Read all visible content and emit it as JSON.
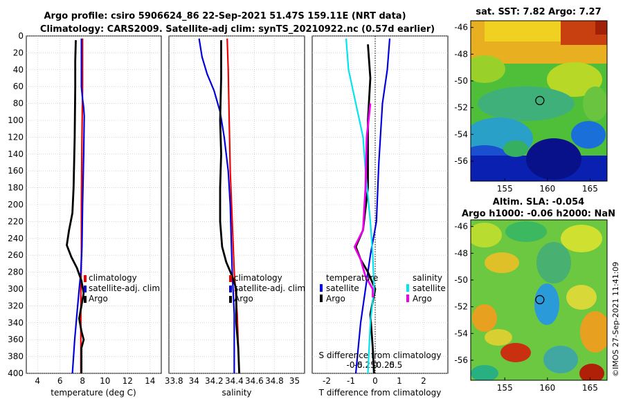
{
  "title_line1": "Argo profile: csiro 5906624_86 22-Sep-2021 51.47S 159.11E (NRT data)",
  "title_line2": "Climatology: CARS2009. Satellite-adj clim: synTS_20210922.nc (0.57d earlier)",
  "watermark": "©IMOS 27-Sep-2021 11:41:09",
  "colors": {
    "climatology": "#ee0000",
    "satellite": "#0000dd",
    "argo": "#000000",
    "sat_salinity": "#00e5ee",
    "argo_salinity": "#ee00ee"
  },
  "chart_data": [
    {
      "type": "line",
      "name": "temperature-panel",
      "xlabel": "temperature (deg C)",
      "ylabel": "",
      "xlim": [
        3,
        15
      ],
      "ylim": [
        0,
        400
      ],
      "xticks": [
        4,
        6,
        8,
        10,
        12,
        14
      ],
      "yticks": [
        0,
        20,
        40,
        60,
        80,
        100,
        120,
        140,
        160,
        180,
        200,
        220,
        240,
        260,
        280,
        300,
        320,
        340,
        360,
        380,
        400
      ],
      "legend": [
        "climatology",
        "satellite-adj. clim",
        "Argo"
      ],
      "series": [
        {
          "name": "climatology",
          "color": "#ee0000",
          "points": [
            [
              8.0,
              3
            ],
            [
              8.0,
              60
            ],
            [
              7.95,
              120
            ],
            [
              7.9,
              200
            ],
            [
              7.9,
              260
            ],
            [
              7.85,
              300
            ],
            [
              7.85,
              330
            ],
            [
              7.85,
              400
            ]
          ]
        },
        {
          "name": "satellite-adj. clim",
          "color": "#0000dd",
          "points": [
            [
              7.9,
              3
            ],
            [
              7.9,
              60
            ],
            [
              8.0,
              75
            ],
            [
              8.1,
              85
            ],
            [
              8.15,
              95
            ],
            [
              8.1,
              140
            ],
            [
              8.0,
              200
            ],
            [
              7.95,
              250
            ],
            [
              7.85,
              280
            ],
            [
              7.7,
              300
            ],
            [
              7.5,
              330
            ],
            [
              7.3,
              360
            ],
            [
              7.1,
              400
            ]
          ]
        },
        {
          "name": "Argo",
          "color": "#000000",
          "points": [
            [
              7.4,
              5
            ],
            [
              7.35,
              30
            ],
            [
              7.35,
              60
            ],
            [
              7.3,
              120
            ],
            [
              7.2,
              180
            ],
            [
              7.1,
              210
            ],
            [
              6.8,
              230
            ],
            [
              6.6,
              248
            ],
            [
              7.0,
              262
            ],
            [
              7.5,
              275
            ],
            [
              7.9,
              290
            ],
            [
              8.1,
              305
            ],
            [
              7.9,
              320
            ],
            [
              7.7,
              335
            ],
            [
              7.9,
              350
            ],
            [
              8.1,
              360
            ],
            [
              7.9,
              370
            ],
            [
              7.9,
              400
            ]
          ]
        }
      ]
    },
    {
      "type": "line",
      "name": "salinity-panel",
      "xlabel": "salinity",
      "ylabel": "",
      "xlim": [
        33.75,
        35.1
      ],
      "ylim": [
        0,
        400
      ],
      "xticks": [
        33.8,
        34,
        34.2,
        34.4,
        34.6,
        34.8,
        35
      ],
      "xtick_labels": [
        "33.8",
        "34",
        "34.2",
        "34.4",
        "34.6",
        "34.8",
        "35"
      ],
      "yticks": [
        0,
        20,
        40,
        60,
        80,
        100,
        120,
        140,
        160,
        180,
        200,
        220,
        240,
        260,
        280,
        300,
        320,
        340,
        360,
        380,
        400
      ],
      "legend": [
        "climatology",
        "satellite-adj. clim",
        "Argo"
      ],
      "series": [
        {
          "name": "climatology",
          "color": "#ee0000",
          "points": [
            [
              34.33,
              3
            ],
            [
              34.34,
              40
            ],
            [
              34.35,
              100
            ],
            [
              34.36,
              160
            ],
            [
              34.38,
              220
            ],
            [
              34.4,
              280
            ],
            [
              34.43,
              330
            ],
            [
              34.45,
              400
            ]
          ]
        },
        {
          "name": "satellite-adj. clim",
          "color": "#0000dd",
          "points": [
            [
              34.05,
              3
            ],
            [
              34.08,
              25
            ],
            [
              34.13,
              45
            ],
            [
              34.2,
              65
            ],
            [
              34.26,
              90
            ],
            [
              34.3,
              120
            ],
            [
              34.34,
              160
            ],
            [
              34.36,
              200
            ],
            [
              34.37,
              240
            ],
            [
              34.38,
              280
            ],
            [
              34.4,
              330
            ],
            [
              34.4,
              400
            ]
          ]
        },
        {
          "name": "Argo",
          "color": "#000000",
          "points": [
            [
              34.27,
              5
            ],
            [
              34.27,
              50
            ],
            [
              34.26,
              100
            ],
            [
              34.27,
              140
            ],
            [
              34.26,
              180
            ],
            [
              34.26,
              220
            ],
            [
              34.28,
              250
            ],
            [
              34.32,
              268
            ],
            [
              34.38,
              285
            ],
            [
              34.42,
              300
            ],
            [
              34.42,
              340
            ],
            [
              34.44,
              370
            ],
            [
              34.45,
              400
            ]
          ]
        }
      ]
    },
    {
      "type": "line",
      "name": "difference-panel",
      "xlabel": "T difference from climatology",
      "xlabel2": "S difference from climatology",
      "xlim": [
        -2.6,
        3
      ],
      "ylim": [
        0,
        400
      ],
      "xticks": [
        -2,
        -1,
        0,
        1,
        2
      ],
      "xtick_labels": [
        "-2",
        "-1",
        "0",
        "1",
        "2"
      ],
      "xticks2": [
        -0.5,
        -0.25,
        0,
        0.25,
        0.5
      ],
      "xtick2_labels": [
        "-0.5",
        "-0.25",
        "0",
        "0.25",
        "0.5"
      ],
      "yticks": [
        0,
        20,
        40,
        60,
        80,
        100,
        120,
        140,
        160,
        180,
        200,
        220,
        240,
        260,
        280,
        300,
        320,
        340,
        360,
        380,
        400
      ],
      "legend_temperature_title": "temperature",
      "legend_salinity_title": "salinity",
      "legend_temperature": [
        "satellite",
        "Argo"
      ],
      "legend_salinity": [
        "satellite",
        "Argo"
      ],
      "series": [
        {
          "name": "temperature satellite",
          "color": "#0000dd",
          "points": [
            [
              0.6,
              3
            ],
            [
              0.5,
              40
            ],
            [
              0.3,
              80
            ],
            [
              0.15,
              150
            ],
            [
              0.05,
              220
            ],
            [
              -0.2,
              260
            ],
            [
              -0.4,
              300
            ],
            [
              -0.6,
              340
            ],
            [
              -0.8,
              400
            ]
          ]
        },
        {
          "name": "temperature Argo",
          "color": "#000000",
          "points": [
            [
              -0.3,
              10
            ],
            [
              -0.2,
              50
            ],
            [
              -0.3,
              100
            ],
            [
              -0.3,
              180
            ],
            [
              -0.5,
              230
            ],
            [
              -0.8,
              250
            ],
            [
              -0.6,
              265
            ],
            [
              -0.3,
              280
            ],
            [
              0.0,
              300
            ],
            [
              -0.2,
              330
            ],
            [
              -0.1,
              370
            ],
            [
              -0.05,
              400
            ]
          ]
        },
        {
          "name": "salinity satellite",
          "color": "#00e5ee",
          "points": [
            [
              -1.2,
              3
            ],
            [
              -1.1,
              40
            ],
            [
              -0.8,
              80
            ],
            [
              -0.5,
              120
            ],
            [
              -0.4,
              160
            ],
            [
              -0.2,
              220
            ],
            [
              -0.1,
              260
            ],
            [
              -0.05,
              300
            ],
            [
              -0.2,
              340
            ],
            [
              -0.3,
              400
            ]
          ]
        },
        {
          "name": "salinity Argo",
          "color": "#ee00ee",
          "points": [
            [
              -0.2,
              80
            ],
            [
              -0.35,
              120
            ],
            [
              -0.4,
              180
            ],
            [
              -0.5,
              230
            ],
            [
              -0.85,
              250
            ],
            [
              -0.6,
              265
            ],
            [
              -0.4,
              285
            ],
            [
              -0.1,
              300
            ],
            [
              -0.1,
              310
            ]
          ]
        }
      ]
    }
  ],
  "maps": [
    {
      "name": "sst-map",
      "title": "sat. SST: 7.82 Argo: 7.27",
      "xticks": [
        155,
        160,
        165
      ],
      "yticks": [
        -46,
        -48,
        -50,
        -52,
        -54,
        -56
      ],
      "xlim": [
        151,
        167
      ],
      "ylim": [
        -57.5,
        -45.5
      ],
      "argo_position": [
        159.11,
        -51.47
      ]
    },
    {
      "name": "sla-map",
      "title_line1": "Altim. SLA: -0.054",
      "title_line2": "Argo h1000: -0.06 h2000: NaN",
      "xticks": [
        155,
        160,
        165
      ],
      "yticks": [
        -46,
        -48,
        -50,
        -52,
        -54,
        -56
      ],
      "xlim": [
        151,
        167
      ],
      "ylim": [
        -57.5,
        -45.5
      ],
      "argo_position": [
        159.11,
        -51.47
      ]
    }
  ]
}
